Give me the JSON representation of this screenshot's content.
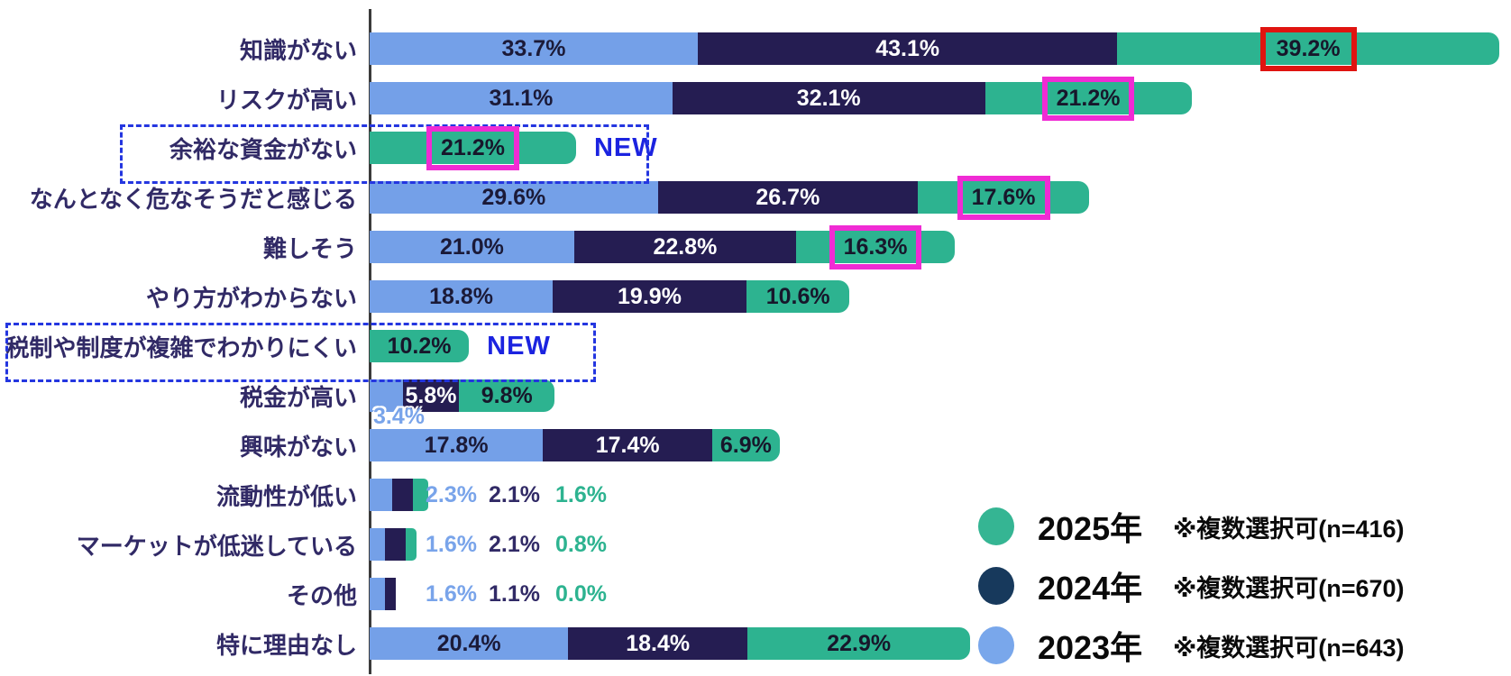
{
  "page": {
    "background": "#FFFFFF"
  },
  "colors": {
    "series_2023": "#74A0E8",
    "series_2024": "#251D52",
    "series_2025": "#2DB390",
    "legend_2023_circle": "#79A7EB",
    "legend_2024_circle": "#17395C",
    "legend_2025_circle": "#35B593",
    "category_text": "#312A66",
    "label_on_2023": "#1B1A38",
    "label_on_2024": "#FFFFFF",
    "label_on_2025": "#17172B",
    "outside_2023": "#79A4EA",
    "outside_2024": "#312A66",
    "outside_2025": "#2DB390",
    "new_text": "#1B23E0",
    "new_box_border": "#2436E0",
    "highlight_red": "#E01410",
    "highlight_magenta": "#F02BD4",
    "axis": "#3B3B3B"
  },
  "chart_data": {
    "type": "bar",
    "orientation": "horizontal",
    "stacked": true,
    "value_unit": "%",
    "xlim": [
      0,
      117
    ],
    "grid": false,
    "legend_position": "bottom-right",
    "new_badge_label": "NEW",
    "categories": [
      "知識がない",
      "リスクが高い",
      "余裕な資金がない",
      "なんとなく危なそうだと感じる",
      "難しそう",
      "やり方がわからない",
      "税制や制度が複雑でわかりにくい",
      "税金が高い",
      "興味がない",
      "流動性が低い",
      "マーケットが低迷している",
      "その他",
      "特に理由なし"
    ],
    "series": [
      {
        "name": "2023年",
        "n": 643,
        "values": [
          33.7,
          31.1,
          null,
          29.6,
          21.0,
          18.8,
          null,
          3.4,
          17.8,
          2.3,
          1.6,
          1.6,
          20.4
        ]
      },
      {
        "name": "2024年",
        "n": 670,
        "values": [
          43.1,
          32.1,
          null,
          26.7,
          22.8,
          19.9,
          null,
          5.8,
          17.4,
          2.1,
          2.1,
          1.1,
          18.4
        ]
      },
      {
        "name": "2025年",
        "n": 416,
        "values": [
          39.2,
          21.2,
          21.2,
          17.6,
          16.3,
          10.6,
          10.2,
          9.8,
          6.9,
          1.6,
          0.8,
          0.0,
          22.9
        ]
      }
    ],
    "rows": [
      {
        "category": "知識がない",
        "values": {
          "y2023": 33.7,
          "y2024": 43.1,
          "y2025": 39.2
        },
        "labels": {
          "y2023": "33.7%",
          "y2024": "43.1%",
          "y2025": "39.2%"
        },
        "highlight_2025": "red"
      },
      {
        "category": "リスクが高い",
        "values": {
          "y2023": 31.1,
          "y2024": 32.1,
          "y2025": 21.2
        },
        "labels": {
          "y2023": "31.1%",
          "y2024": "32.1%",
          "y2025": "21.2%"
        },
        "highlight_2025": "magenta"
      },
      {
        "category": "余裕な資金がない",
        "values": {
          "y2023": null,
          "y2024": null,
          "y2025": 21.2
        },
        "labels": {
          "y2025": "21.2%"
        },
        "highlight_2025": "magenta",
        "new": true
      },
      {
        "category": "なんとなく危なそうだと感じる",
        "values": {
          "y2023": 29.6,
          "y2024": 26.7,
          "y2025": 17.6
        },
        "labels": {
          "y2023": "29.6%",
          "y2024": "26.7%",
          "y2025": "17.6%"
        },
        "highlight_2025": "magenta"
      },
      {
        "category": "難しそう",
        "values": {
          "y2023": 21.0,
          "y2024": 22.8,
          "y2025": 16.3
        },
        "labels": {
          "y2023": "21.0%",
          "y2024": "22.8%",
          "y2025": "16.3%"
        },
        "highlight_2025": "magenta"
      },
      {
        "category": "やり方がわからない",
        "values": {
          "y2023": 18.8,
          "y2024": 19.9,
          "y2025": 10.6
        },
        "labels": {
          "y2023": "18.8%",
          "y2024": "19.9%",
          "y2025": "10.6%"
        }
      },
      {
        "category": "税制や制度が複雑でわかりにくい",
        "values": {
          "y2023": null,
          "y2024": null,
          "y2025": 10.2
        },
        "labels": {
          "y2025": "10.2%"
        },
        "new": true
      },
      {
        "category": "税金が高い",
        "values": {
          "y2023": 3.4,
          "y2024": 5.8,
          "y2025": 9.8
        },
        "labels": {
          "y2023": "3.4%",
          "y2024": "5.8%",
          "y2025": "9.8%"
        },
        "label_2023_below": true
      },
      {
        "category": "興味がない",
        "values": {
          "y2023": 17.8,
          "y2024": 17.4,
          "y2025": 6.9
        },
        "labels": {
          "y2023": "17.8%",
          "y2024": "17.4%",
          "y2025": "6.9%"
        }
      },
      {
        "category": "流動性が低い",
        "values": {
          "y2023": 2.3,
          "y2024": 2.1,
          "y2025": 1.6
        },
        "labels": {
          "y2023": "2.3%",
          "y2024": "2.1%",
          "y2025": "1.6%"
        },
        "labels_outside": true
      },
      {
        "category": "マーケットが低迷している",
        "values": {
          "y2023": 1.6,
          "y2024": 2.1,
          "y2025": 0.8
        },
        "labels": {
          "y2023": "1.6%",
          "y2024": "2.1%",
          "y2025": "0.8%"
        },
        "labels_outside": true
      },
      {
        "category": "その他",
        "values": {
          "y2023": 1.6,
          "y2024": 1.1,
          "y2025": 0.0
        },
        "labels": {
          "y2023": "1.6%",
          "y2024": "1.1%",
          "y2025": "0.0%"
        },
        "labels_outside": true
      },
      {
        "category": "特に理由なし",
        "values": {
          "y2023": 20.4,
          "y2024": 18.4,
          "y2025": 22.9
        },
        "labels": {
          "y2023": "20.4%",
          "y2024": "18.4%",
          "y2025": "22.9%"
        }
      }
    ],
    "legend": [
      {
        "year_label": "2025年",
        "note": "※複数選択可(n=416)",
        "n": 416,
        "color_key": "legend_2025_circle"
      },
      {
        "year_label": "2024年",
        "note": "※複数選択可(n=670)",
        "n": 670,
        "color_key": "legend_2024_circle"
      },
      {
        "year_label": "2023年",
        "note": "※複数選択可(n=643)",
        "n": 643,
        "color_key": "legend_2023_circle"
      }
    ]
  }
}
